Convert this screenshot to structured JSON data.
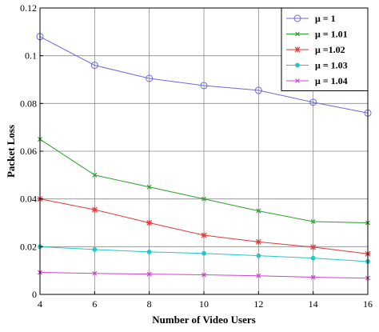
{
  "chart_data": {
    "type": "line",
    "xlabel": "Number of Video Users",
    "ylabel": "Packet Loss",
    "xlim": [
      4,
      16
    ],
    "ylim": [
      0,
      0.12
    ],
    "x": [
      4,
      6,
      8,
      10,
      12,
      14,
      16
    ],
    "xticks": [
      "4",
      "6",
      "8",
      "10",
      "12",
      "14",
      "16"
    ],
    "yticks": [
      "0",
      "0.02",
      "0.04",
      "0.06",
      "0.08",
      "0.1",
      "0.12"
    ],
    "grid": true,
    "legend_position": "top-right",
    "series": [
      {
        "name": "μ = 1",
        "color": "#6b6bd6",
        "marker": "circle",
        "values": [
          0.108,
          0.096,
          0.0905,
          0.0875,
          0.0855,
          0.0805,
          0.076
        ]
      },
      {
        "name": "μ = 1.01",
        "color": "#2e9c2e",
        "marker": "x",
        "values": [
          0.065,
          0.05,
          0.045,
          0.04,
          0.035,
          0.0305,
          0.03
        ]
      },
      {
        "name": "μ =1.02",
        "color": "#e03a3a",
        "marker": "star",
        "values": [
          0.04,
          0.0355,
          0.03,
          0.0248,
          0.022,
          0.0198,
          0.017
        ]
      },
      {
        "name": "μ = 1.03",
        "color": "#22c7c7",
        "marker": "dot",
        "values": [
          0.02,
          0.0188,
          0.0178,
          0.0172,
          0.0162,
          0.0152,
          0.0138
        ]
      },
      {
        "name": "μ = 1.04",
        "color": "#cc44cc",
        "marker": "x",
        "values": [
          0.0092,
          0.0088,
          0.0085,
          0.0082,
          0.0078,
          0.0072,
          0.0068
        ]
      }
    ]
  }
}
